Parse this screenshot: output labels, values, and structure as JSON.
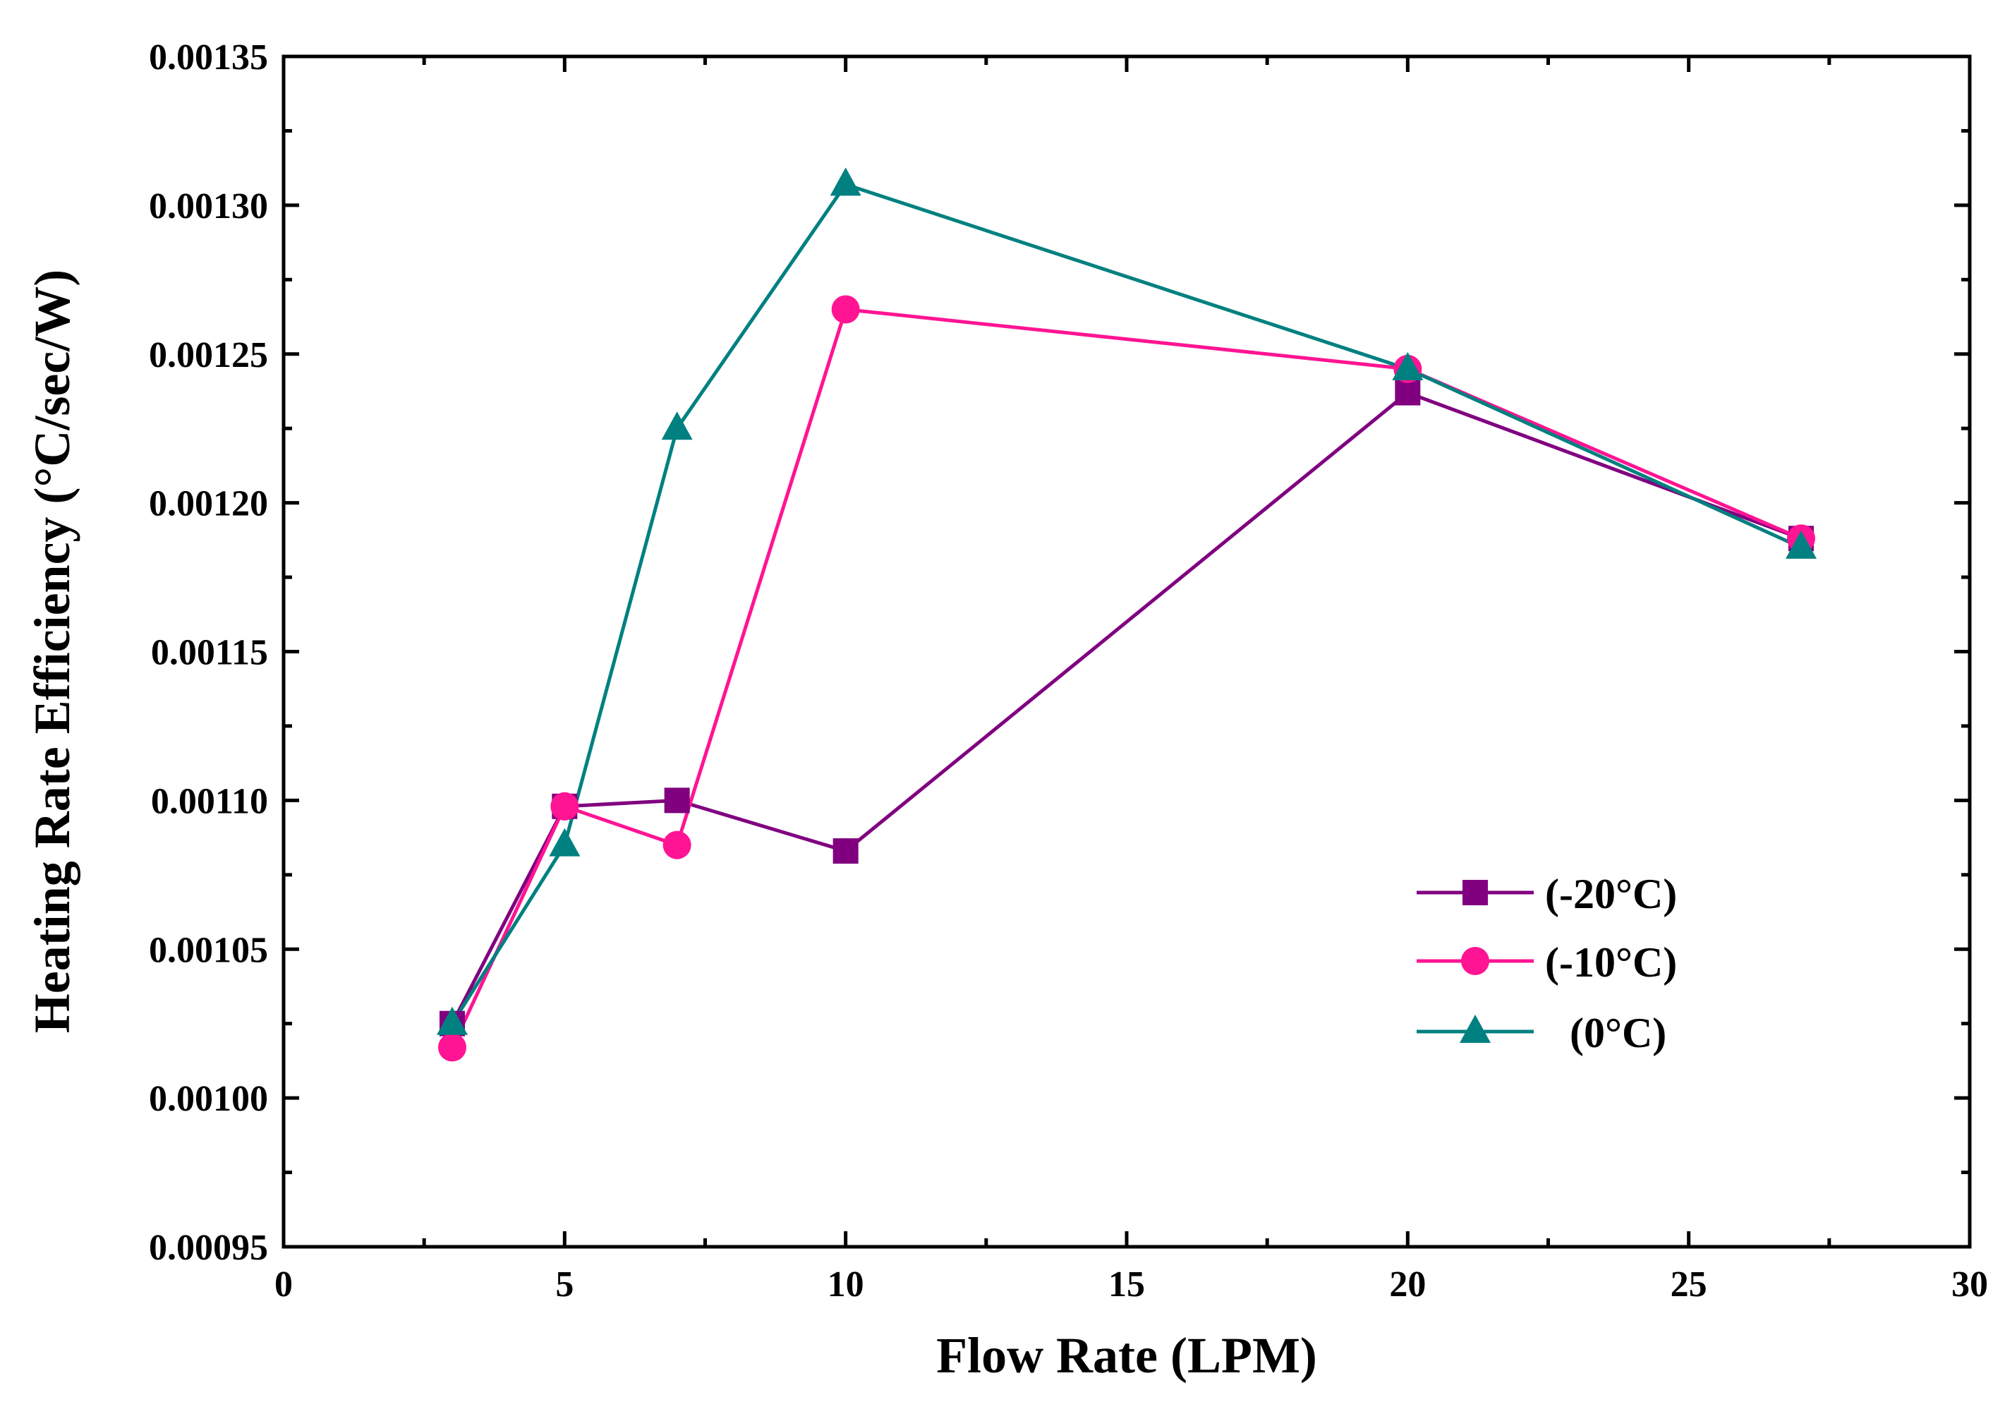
{
  "chart_data": {
    "type": "line",
    "title": "",
    "xlabel": "Flow Rate (LPM)",
    "ylabel": "Heating Rate Efficiency (°C/sec/W)",
    "xlim": [
      0,
      30
    ],
    "ylim": [
      0.00095,
      0.00135
    ],
    "x_ticks": [
      "0",
      "5",
      "10",
      "15",
      "20",
      "25",
      "30"
    ],
    "y_ticks": [
      "0.00095",
      "0.00100",
      "0.00105",
      "0.00110",
      "0.00115",
      "0.00120",
      "0.00125",
      "0.00130",
      "0.00135"
    ],
    "x_tick_values": [
      0,
      5,
      10,
      15,
      20,
      25,
      30
    ],
    "y_tick_values": [
      0.00095,
      0.001,
      0.00105,
      0.0011,
      0.00115,
      0.0012,
      0.00125,
      0.0013,
      0.00135
    ],
    "grid": false,
    "legend_position": "lower-right",
    "series": [
      {
        "name": "(-20°C)",
        "marker": "square",
        "color": "#800080",
        "x": [
          3,
          5,
          7,
          10,
          20,
          27
        ],
        "y": [
          0.001025,
          0.001098,
          0.0011,
          0.001083,
          0.001237,
          0.001188
        ]
      },
      {
        "name": "(-10°C)",
        "marker": "circle",
        "color": "#ff1493",
        "x": [
          3,
          5,
          7,
          10,
          20,
          27
        ],
        "y": [
          0.001017,
          0.001098,
          0.001085,
          0.001265,
          0.001245,
          0.001188
        ]
      },
      {
        "name": "(0°C)",
        "marker": "triangle",
        "color": "#008080",
        "x": [
          3,
          5,
          7,
          10,
          20,
          27
        ],
        "y": [
          0.001025,
          0.001085,
          0.001225,
          0.001307,
          0.001245,
          0.001185
        ]
      }
    ]
  }
}
